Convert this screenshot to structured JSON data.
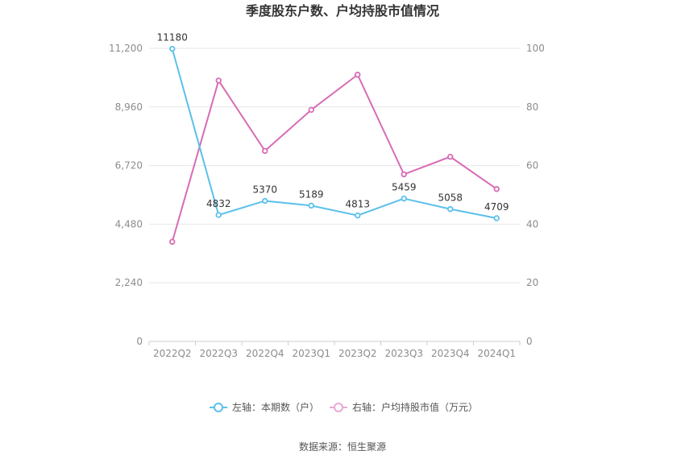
{
  "chart_data": {
    "type": "line",
    "title": "季度股东户数、户均持股市值情况",
    "categories": [
      "2022Q2",
      "2022Q3",
      "2022Q4",
      "2023Q1",
      "2023Q2",
      "2023Q3",
      "2023Q4",
      "2024Q1"
    ],
    "left_axis": {
      "ylim": [
        0,
        11200
      ],
      "ticks": [
        "0",
        "2,240",
        "4,480",
        "6,720",
        "8,960",
        "11,200"
      ],
      "tick_values": [
        0,
        2240,
        4480,
        6720,
        8960,
        11200
      ]
    },
    "right_axis": {
      "ylim": [
        0,
        100
      ],
      "ticks": [
        "0",
        "20",
        "40",
        "60",
        "80",
        "100"
      ],
      "tick_values": [
        0,
        20,
        40,
        60,
        80,
        100
      ]
    },
    "series": [
      {
        "name": "左轴：本期数（户）",
        "axis": "left",
        "color": "#5bc0eb",
        "values": [
          11180,
          4832,
          5370,
          5189,
          4813,
          5459,
          5058,
          4709
        ],
        "labels": [
          "11180",
          "4832",
          "5370",
          "5189",
          "4813",
          "5459",
          "5058",
          "4709"
        ]
      },
      {
        "name": "右轴：户均持股市值（万元）",
        "axis": "right",
        "color": "#d86bb5",
        "values": [
          34,
          89,
          65,
          79,
          91,
          57,
          63,
          52
        ]
      }
    ],
    "grid": true,
    "legend_position": "bottom"
  },
  "source": "数据来源：恒生聚源",
  "colors": {
    "left_series": "#5bc0eb",
    "right_series": "#d86bb5",
    "legend_right": "#e7a9d4"
  }
}
